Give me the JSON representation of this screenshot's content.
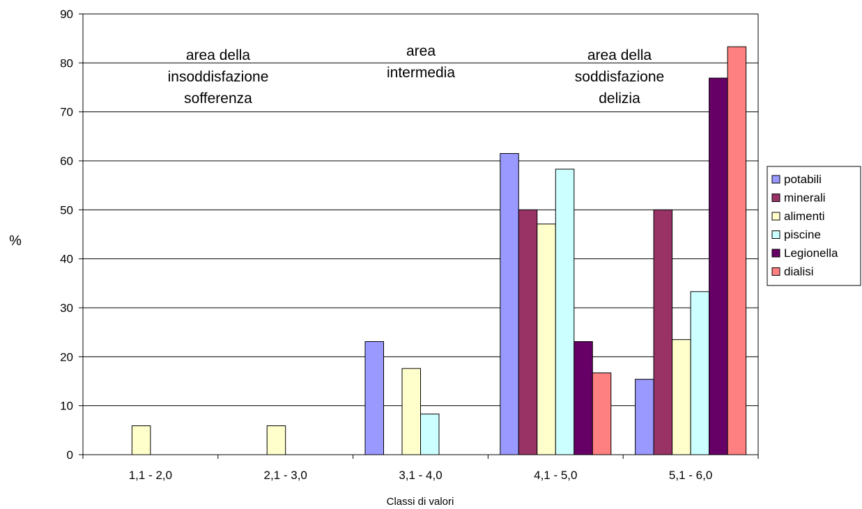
{
  "chart_data": {
    "type": "bar",
    "categories": [
      "1,1 - 2,0",
      "2,1 - 3,0",
      "3,1 - 4,0",
      "4,1 - 5,0",
      "5,1 - 6,0"
    ],
    "series": [
      {
        "name": "potabili",
        "color": "#9999ff",
        "values": [
          0,
          0,
          23.1,
          61.5,
          15.4
        ]
      },
      {
        "name": "minerali",
        "color": "#993366",
        "values": [
          0,
          0,
          0,
          50.0,
          50.0
        ]
      },
      {
        "name": "alimenti",
        "color": "#ffffcc",
        "values": [
          5.9,
          5.9,
          17.6,
          47.1,
          23.5
        ]
      },
      {
        "name": "piscine",
        "color": "#ccffff",
        "values": [
          0,
          0,
          8.3,
          58.3,
          33.3
        ]
      },
      {
        "name": "Legionella",
        "color": "#660066",
        "values": [
          0,
          0,
          0,
          23.1,
          76.9
        ]
      },
      {
        "name": "dialisi",
        "color": "#ff8080",
        "values": [
          0,
          0,
          0,
          16.7,
          83.3
        ]
      }
    ],
    "xlabel": "Classi di valori",
    "ylabel": "%",
    "ylim": [
      0,
      90
    ],
    "yticks": [
      0,
      10,
      20,
      30,
      40,
      50,
      60,
      70,
      80,
      90
    ],
    "grid": true,
    "legend_position": "right",
    "annotations": [
      {
        "lines": [
          "area della",
          "insoddisfazione",
          "sofferenza"
        ]
      },
      {
        "lines": [
          "area",
          "intermedia"
        ]
      },
      {
        "lines": [
          "area della",
          "soddisfazione",
          "delizia"
        ]
      }
    ]
  }
}
